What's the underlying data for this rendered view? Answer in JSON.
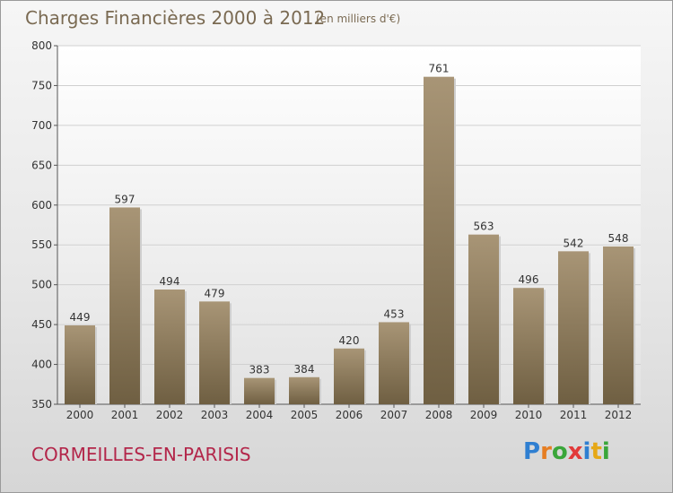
{
  "chart_data": {
    "type": "bar",
    "title": "Charges Financières 2000 à 2012",
    "unit_note": "(en milliers d'€)",
    "categories": [
      "2000",
      "2001",
      "2002",
      "2003",
      "2004",
      "2005",
      "2006",
      "2007",
      "2008",
      "2009",
      "2010",
      "2011",
      "2012"
    ],
    "values": [
      449,
      597,
      494,
      479,
      383,
      384,
      420,
      453,
      761,
      563,
      496,
      542,
      548
    ],
    "ylim": [
      350,
      800
    ],
    "yticks": [
      350,
      400,
      450,
      500,
      550,
      600,
      650,
      700,
      750,
      800
    ],
    "grid": true,
    "legend": "none",
    "bar_color": "#8b7a5c"
  },
  "footer": {
    "city": "CORMEILLES-EN-PARISIS",
    "logo_letters": [
      "P",
      "r",
      "o",
      "x",
      "i",
      "t",
      "i"
    ],
    "logo_colors": [
      "#2f7fd1",
      "#e67e22",
      "#3aa63a",
      "#e23a3a",
      "#2f7fd1",
      "#e6a817",
      "#3aa63a"
    ]
  }
}
